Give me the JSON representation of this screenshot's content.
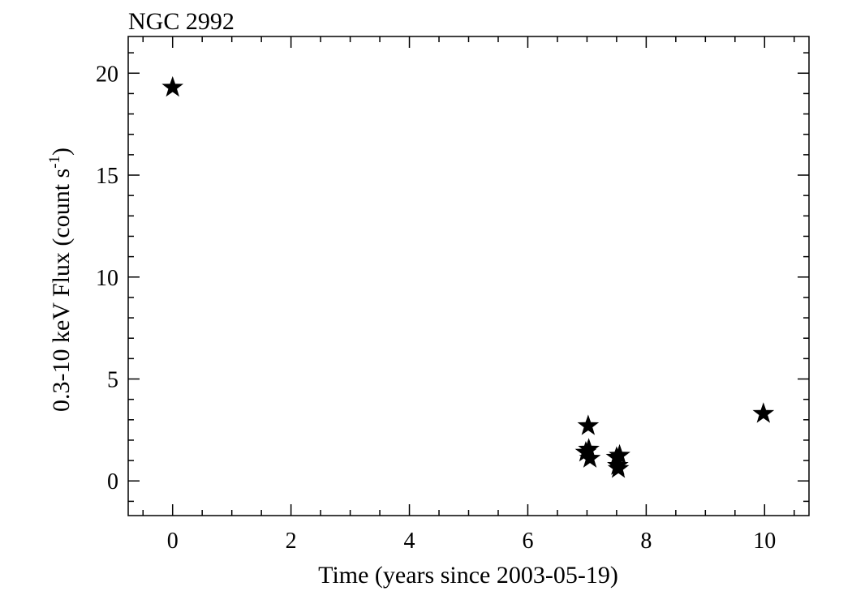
{
  "chart_data": {
    "type": "scatter",
    "title": "NGC 2992",
    "xlabel": "Time (years since 2003-05-19)",
    "ylabel": "0.3-10 keV Flux (count s",
    "ylabel_superscript": "-1",
    "ylabel_suffix": ")",
    "xlim": [
      -0.75,
      10.75
    ],
    "ylim": [
      -1.7,
      21.8
    ],
    "x_ticks": [
      0,
      2,
      4,
      6,
      8,
      10
    ],
    "y_ticks": [
      0,
      5,
      10,
      15,
      20
    ],
    "x_tick_labels": [
      "0",
      "2",
      "4",
      "6",
      "8",
      "10"
    ],
    "y_tick_labels": [
      "0",
      "5",
      "10",
      "15",
      "20"
    ],
    "marker": "star",
    "grid": false,
    "series": [
      {
        "x": [
          0.0,
          6.98,
          7.02,
          7.03,
          7.05,
          7.5,
          7.52,
          7.53,
          7.55,
          9.98
        ],
        "y": [
          19.3,
          1.4,
          2.7,
          1.55,
          1.1,
          1.15,
          0.75,
          0.6,
          1.25,
          3.3
        ]
      }
    ]
  }
}
